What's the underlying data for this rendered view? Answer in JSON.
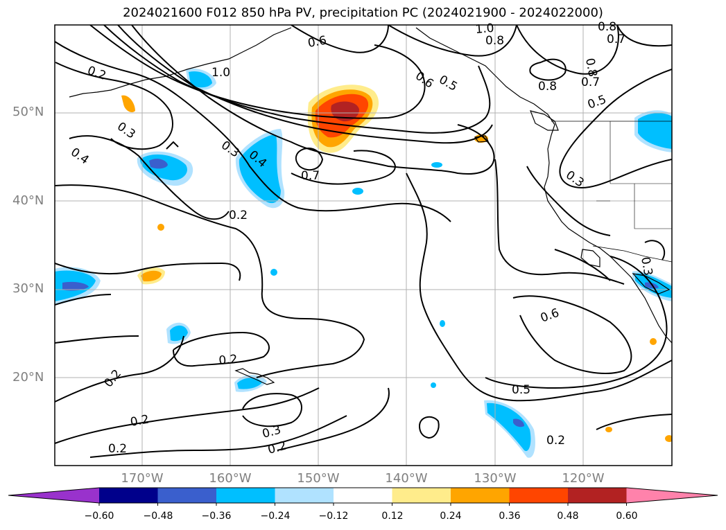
{
  "title": "2024021600 F012 850 hPa PV, precipitation PC (2024021900 - 2024022000)",
  "lat_labels": [
    "50°N",
    "40°N",
    "30°N",
    "20°N"
  ],
  "lon_labels": [
    "170°W",
    "160°W",
    "150°W",
    "140°W",
    "130°W",
    "120°W"
  ],
  "contour_labels": [
    "1.0",
    "0.8",
    "0.6",
    "0.7",
    "0.8",
    "0.2",
    "1.0",
    "0.8",
    "0.6",
    "0.5",
    "0.8",
    "0.7",
    "0.5",
    "0.3",
    "0.3",
    "0.4",
    "0.4",
    "0.7",
    "0.3",
    "0.2",
    "0.3",
    "0.6",
    "0.5",
    "0.2",
    "0.2",
    "0.2",
    "0.3",
    "0.2",
    "0.2",
    "0.2"
  ],
  "colorbar": {
    "ticks": [
      "−0.60",
      "−0.48",
      "−0.36",
      "−0.24",
      "−0.12",
      "0.12",
      "0.24",
      "0.36",
      "0.48",
      "0.60"
    ],
    "colors": [
      "#9932cc",
      "#00008b",
      "#3a5fcd",
      "#00bfff",
      "#b0e2ff",
      "#ffffff",
      "#ffec8b",
      "#ffa500",
      "#ff4500",
      "#b22222",
      "#ff82ab"
    ]
  },
  "fill_colors": {
    "blue_light": "#b0e2ff",
    "blue": "#00bfff",
    "blue_dark": "#3a5fcd",
    "yellow": "#ffec8b",
    "orange": "#ffa500",
    "red_orange": "#ff4500",
    "red": "#b22222"
  }
}
